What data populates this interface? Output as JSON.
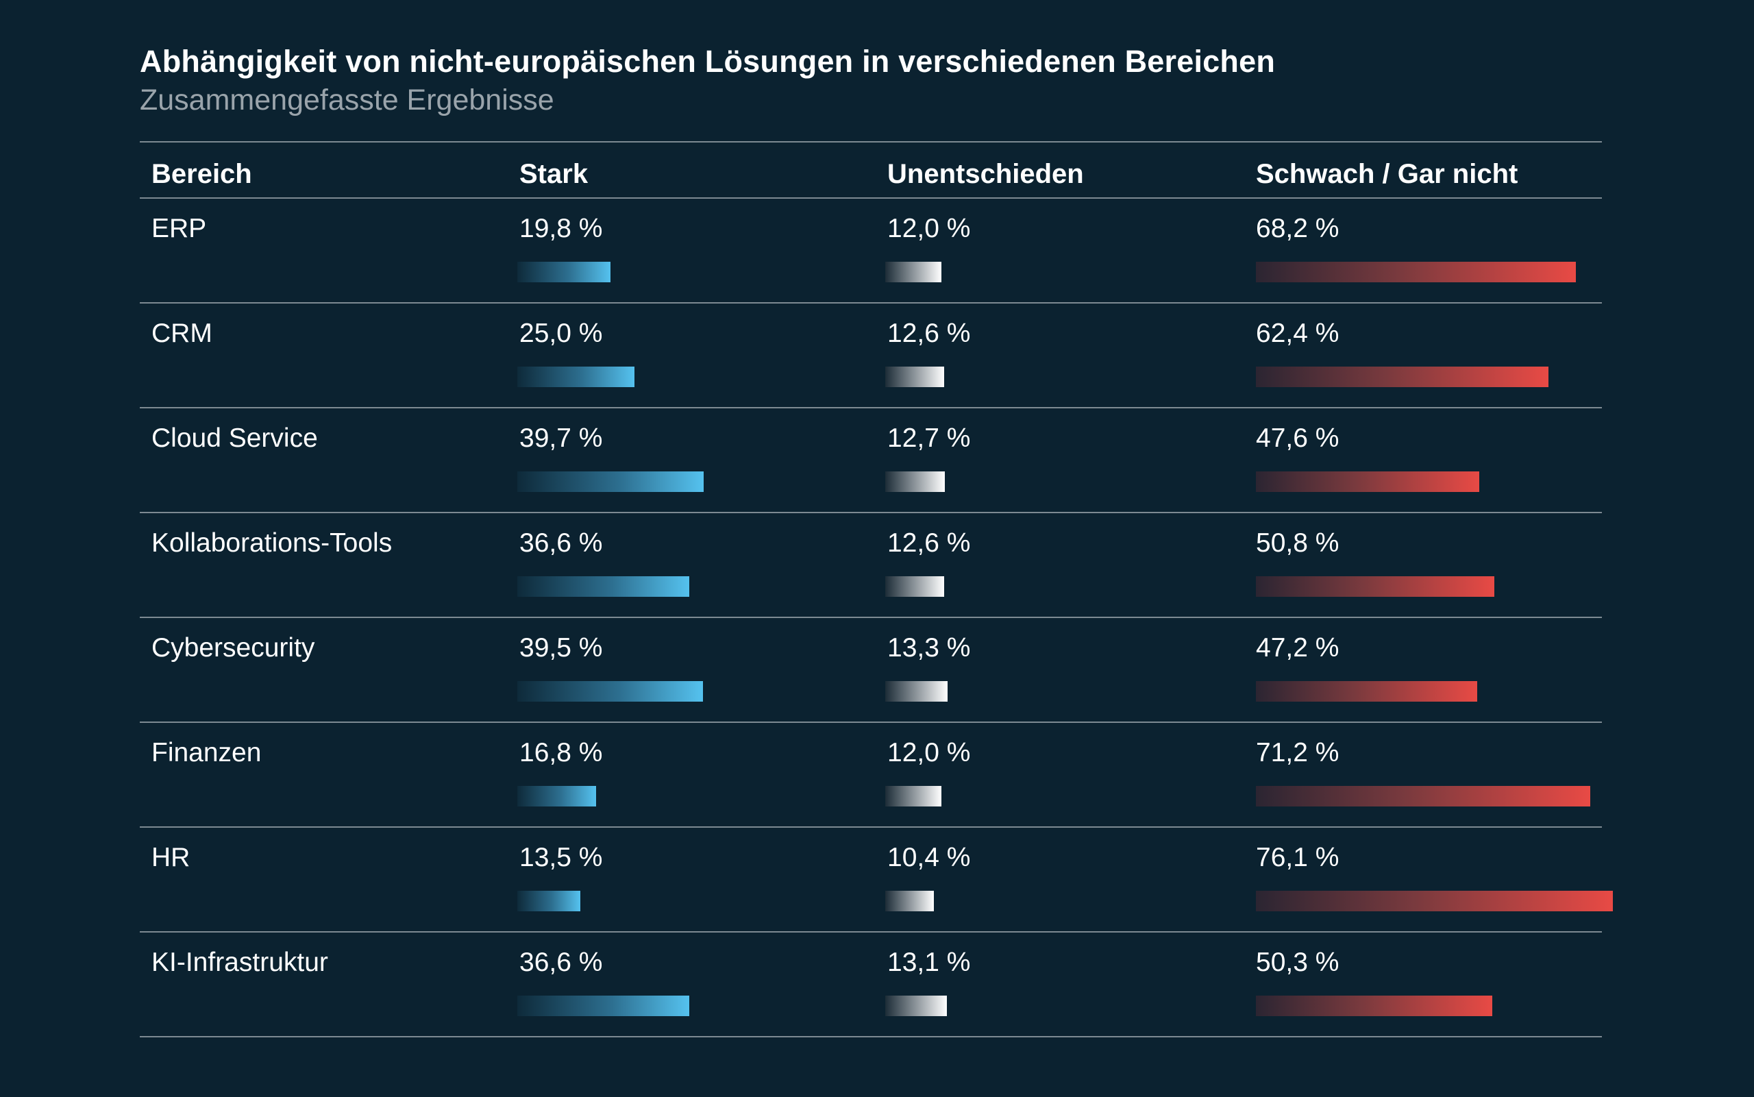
{
  "title": "Abhängigkeit von nicht-europäischen Lösungen in verschiedenen Bereichen",
  "subtitle": "Zusammengefasste Ergebnisse",
  "columns": {
    "bereich": "Bereich",
    "stark": "Stark",
    "unentschieden": "Unentschieden",
    "schwach": "Schwach / Gar nicht"
  },
  "colors": {
    "background": "#0b2230",
    "stark": "#55c2ef",
    "unentschieden": "#ffffff",
    "schwach": "#e84a45"
  },
  "chart_data": {
    "type": "table",
    "title": "Abhängigkeit von nicht-europäischen Lösungen in verschiedenen Bereichen",
    "subtitle": "Zusammengefasste Ergebnisse",
    "categories": [
      "ERP",
      "CRM",
      "Cloud Service",
      "Kollaborations-Tools",
      "Cybersecurity",
      "Finanzen",
      "HR",
      "KI-Infrastruktur"
    ],
    "series": [
      {
        "name": "Stark",
        "values": [
          19.8,
          25.0,
          39.7,
          36.6,
          39.5,
          16.8,
          13.5,
          36.6
        ]
      },
      {
        "name": "Unentschieden",
        "values": [
          12.0,
          12.6,
          12.7,
          12.6,
          13.3,
          12.0,
          10.4,
          13.1
        ]
      },
      {
        "name": "Schwach / Gar nicht",
        "values": [
          68.2,
          62.4,
          47.6,
          50.8,
          47.2,
          71.2,
          76.1,
          50.3
        ]
      }
    ],
    "labels": {
      "stark": [
        "19,8 %",
        "25,0 %",
        "39,7 %",
        "36,6 %",
        "39,5 %",
        "16,8 %",
        "13,5 %",
        "36,6 %"
      ],
      "unentschieden": [
        "12,0 %",
        "12,6 %",
        "12,7 %",
        "12,6 %",
        "13,3 %",
        "12,0 %",
        "10,4 %",
        "13,1 %"
      ],
      "schwach": [
        "68,2 %",
        "62,4 %",
        "47,6 %",
        "50,8 %",
        "47,2 %",
        "71,2 %",
        "76,1 %",
        "50,3 %"
      ]
    },
    "unit": "%"
  }
}
